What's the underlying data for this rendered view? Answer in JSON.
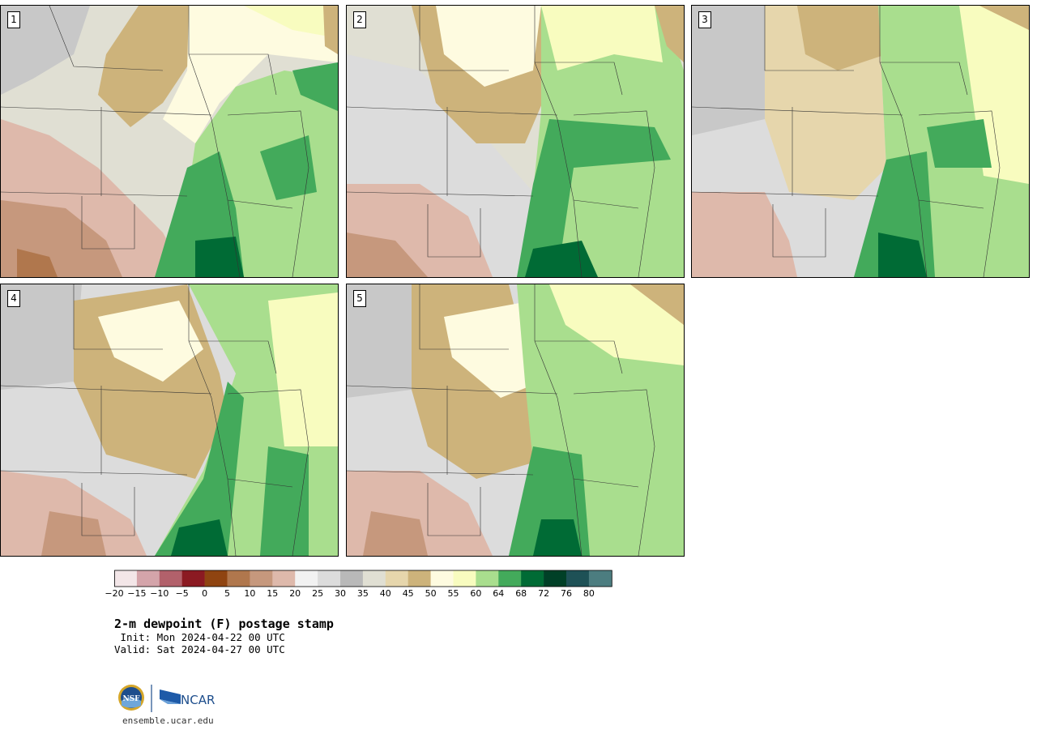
{
  "title": "2-m dewpoint (F) postage stamp",
  "init": " Init: Mon 2024-04-22 00 UTC",
  "valid": "Valid: Sat 2024-04-27 00 UTC",
  "site": "ensemble.ucar.edu",
  "logo_left": "NSF",
  "logo_right": "NCAR",
  "panels": [
    {
      "label": "1"
    },
    {
      "label": "2"
    },
    {
      "label": "3"
    },
    {
      "label": "4"
    },
    {
      "label": "5"
    }
  ],
  "colorbar": {
    "colors": [
      "#f3e6e8",
      "#d4a4aa",
      "#b2616b",
      "#8b1a22",
      "#8f4411",
      "#b0774d",
      "#c6987d",
      "#deb9ab",
      "#f2f2f2",
      "#dcdcdc",
      "#b9b9b9",
      "#e0dfd3",
      "#e6d6ac",
      "#cdb37b",
      "#fefbe0",
      "#f8fcbf",
      "#a9de8e",
      "#43aa5b",
      "#006b35",
      "#004027",
      "#1e5156",
      "#4c7d80"
    ],
    "tick_labels": [
      "−20",
      "−15",
      "−10",
      "−5",
      "0",
      "5",
      "10",
      "15",
      "20",
      "25",
      "30",
      "35",
      "40",
      "45",
      "50",
      "55",
      "60",
      "64",
      "68",
      "72",
      "76",
      "80"
    ]
  }
}
